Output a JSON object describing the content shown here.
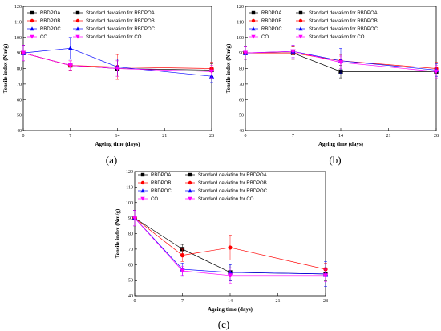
{
  "chart_data": [
    {
      "type": "line",
      "panel_label": "(a)",
      "xlabel": "Ageing time (days)",
      "ylabel": "Tensile index (Nm/g)",
      "xlim": [
        0,
        28
      ],
      "ylim": [
        40,
        120
      ],
      "xticks": [
        0,
        7,
        14,
        21,
        28
      ],
      "yticks": [
        40,
        50,
        60,
        70,
        80,
        90,
        100,
        110,
        120
      ],
      "x": [
        0,
        7,
        14,
        28
      ],
      "legend": {
        "placement": "top-left",
        "entries": [
          "RBDPOA",
          "RBDPOB",
          "RBDPOC",
          "CO"
        ],
        "sd_entries": [
          "Standard deviation for RBDPOA",
          "Standard deviation for RBDPOB",
          "Standard deviation for RBDPOC",
          "Standard deviation for CO"
        ]
      },
      "series": [
        {
          "name": "RBDPOA",
          "color": "#000000",
          "marker": "square",
          "values": [
            90,
            82,
            80,
            79
          ],
          "errors": [
            5,
            3,
            5,
            4
          ]
        },
        {
          "name": "RBDPOB",
          "color": "#ff0000",
          "marker": "circle",
          "values": [
            90,
            82,
            81,
            80
          ],
          "errors": [
            5,
            3,
            8,
            4
          ]
        },
        {
          "name": "RBDPOC",
          "color": "#0000ff",
          "marker": "triangle-up",
          "values": [
            90,
            93,
            81,
            75
          ],
          "errors": [
            5,
            7,
            5,
            4
          ]
        },
        {
          "name": "CO",
          "color": "#ff00ff",
          "marker": "triangle-down",
          "values": [
            90,
            82,
            80,
            78
          ],
          "errors": [
            5,
            3,
            5,
            4
          ]
        }
      ]
    },
    {
      "type": "line",
      "panel_label": "(b)",
      "xlabel": "Ageing time (days)",
      "ylabel": "Tensile index (Nm/g)",
      "xlim": [
        0,
        28
      ],
      "ylim": [
        40,
        120
      ],
      "xticks": [
        0,
        7,
        14,
        21,
        28
      ],
      "yticks": [
        40,
        50,
        60,
        70,
        80,
        90,
        100,
        110,
        120
      ],
      "x": [
        0,
        7,
        14,
        28
      ],
      "legend": {
        "placement": "top-left",
        "entries": [
          "RBDPOA",
          "RBDPOB",
          "RBDPOC",
          "CO"
        ],
        "sd_entries": [
          "Standard deviation for RBDPOA",
          "Standard deviation for RBDPOB",
          "Standard deviation for RBDPOC",
          "Standard deviation for CO"
        ]
      },
      "series": [
        {
          "name": "RBDPOA",
          "color": "#000000",
          "marker": "square",
          "values": [
            90,
            90,
            78,
            78
          ],
          "errors": [
            4,
            4,
            4,
            3
          ]
        },
        {
          "name": "RBDPOB",
          "color": "#ff0000",
          "marker": "circle",
          "values": [
            90,
            90,
            85,
            80
          ],
          "errors": [
            4,
            4,
            4,
            4
          ]
        },
        {
          "name": "RBDPOC",
          "color": "#0000ff",
          "marker": "triangle-up",
          "values": [
            90,
            91,
            85,
            79
          ],
          "errors": [
            4,
            4,
            8,
            4
          ]
        },
        {
          "name": "CO",
          "color": "#ff00ff",
          "marker": "triangle-down",
          "values": [
            90,
            91,
            84,
            78
          ],
          "errors": [
            4,
            4,
            4,
            4
          ]
        }
      ]
    },
    {
      "type": "line",
      "panel_label": "(c)",
      "xlabel": "Ageing time (days)",
      "ylabel": "Tensile index (Nm/g)",
      "xlim": [
        0,
        28
      ],
      "ylim": [
        40,
        120
      ],
      "xticks": [
        0,
        7,
        14,
        21,
        28
      ],
      "yticks": [
        40,
        50,
        60,
        70,
        80,
        90,
        100,
        110,
        120
      ],
      "x": [
        0,
        7,
        14,
        28
      ],
      "legend": {
        "placement": "top-left",
        "entries": [
          "RBDPOA",
          "RBDPOB",
          "RBDPOC",
          "CO"
        ],
        "sd_entries": [
          "Standard deviation for RBDPOA",
          "Standard deviation for RBDPOB",
          "Standard deviation for RBDPOC",
          "Standard deviation for CO"
        ]
      },
      "series": [
        {
          "name": "RBDPOA",
          "color": "#000000",
          "marker": "square",
          "values": [
            90,
            70,
            55,
            54
          ],
          "errors": [
            5,
            3,
            5,
            4
          ]
        },
        {
          "name": "RBDPOB",
          "color": "#ff0000",
          "marker": "circle",
          "values": [
            90,
            66,
            71,
            57
          ],
          "errors": [
            5,
            4,
            8,
            4
          ]
        },
        {
          "name": "RBDPOC",
          "color": "#0000ff",
          "marker": "triangle-up",
          "values": [
            90,
            57,
            55,
            54
          ],
          "errors": [
            5,
            4,
            5,
            8
          ]
        },
        {
          "name": "CO",
          "color": "#ff00ff",
          "marker": "triangle-down",
          "values": [
            90,
            56,
            53,
            53
          ],
          "errors": [
            5,
            3,
            5,
            4
          ]
        }
      ]
    }
  ]
}
